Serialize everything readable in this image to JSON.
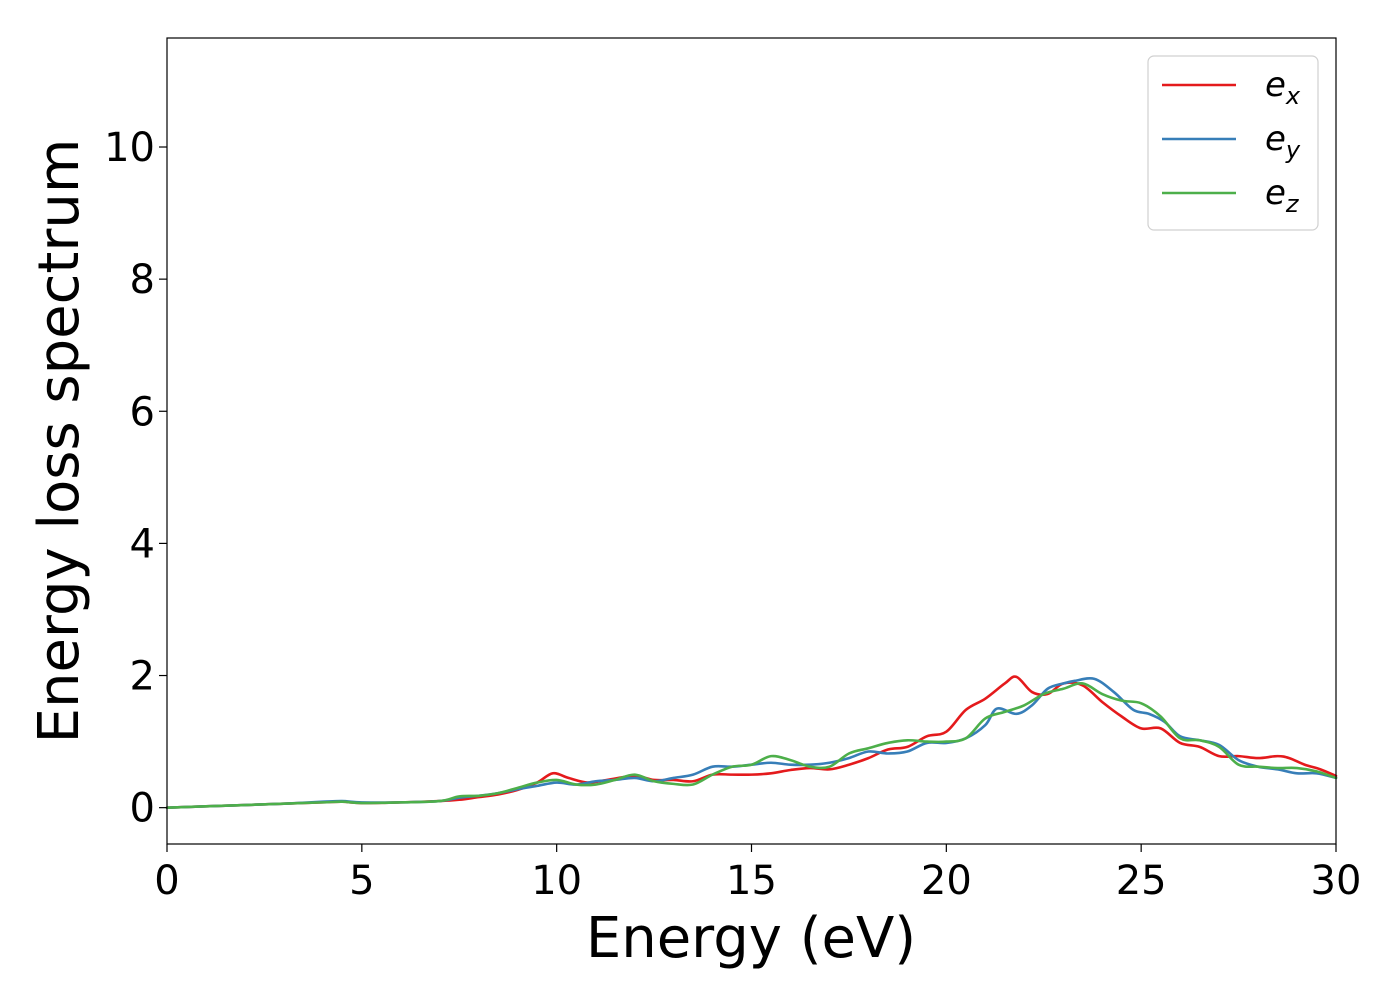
{
  "chart_data": {
    "type": "line",
    "title": "",
    "xlabel": "Energy (eV)",
    "ylabel": "Energy loss spectrum",
    "xlim": [
      0,
      30
    ],
    "ylim": [
      -0.55,
      11.65
    ],
    "xticks": [
      0,
      5,
      10,
      15,
      20,
      25,
      30
    ],
    "yticks": [
      0,
      2,
      4,
      6,
      8,
      10
    ],
    "grid": false,
    "legend_position": "top-right",
    "series": [
      {
        "name": "e_x",
        "label_base": "e",
        "label_sub": "x",
        "color": "#e41a1c",
        "x": [
          0,
          1,
          2,
          3,
          4,
          4.5,
          5,
          6,
          7,
          7.5,
          8,
          8.5,
          9,
          9.5,
          9.9,
          10.3,
          10.8,
          11.3,
          12,
          12.5,
          13,
          13.5,
          14,
          14.5,
          15,
          15.5,
          16,
          16.5,
          17,
          17.5,
          18,
          18.5,
          19,
          19.5,
          20,
          20.5,
          21,
          21.5,
          21.8,
          22.2,
          22.6,
          23,
          23.5,
          24,
          24.5,
          25,
          25.5,
          26,
          26.5,
          27,
          27.5,
          28,
          28.5,
          28.8,
          29.2,
          29.6,
          30
        ],
        "y": [
          0,
          0.02,
          0.04,
          0.06,
          0.08,
          0.09,
          0.07,
          0.08,
          0.1,
          0.12,
          0.16,
          0.2,
          0.27,
          0.38,
          0.52,
          0.45,
          0.38,
          0.42,
          0.48,
          0.42,
          0.42,
          0.4,
          0.5,
          0.5,
          0.5,
          0.52,
          0.57,
          0.6,
          0.58,
          0.65,
          0.75,
          0.88,
          0.92,
          1.08,
          1.15,
          1.48,
          1.65,
          1.88,
          1.98,
          1.75,
          1.72,
          1.88,
          1.85,
          1.6,
          1.38,
          1.2,
          1.2,
          0.98,
          0.92,
          0.78,
          0.78,
          0.75,
          0.78,
          0.75,
          0.65,
          0.58,
          0.48
        ]
      },
      {
        "name": "e_y",
        "label_base": "e",
        "label_sub": "y",
        "color": "#377eb8",
        "x": [
          0,
          1,
          2,
          3,
          4,
          4.5,
          5,
          6,
          7,
          7.5,
          8,
          8.5,
          9,
          9.5,
          10,
          10.5,
          11,
          11.5,
          12,
          12.5,
          13,
          13.5,
          14,
          14.5,
          15,
          15.5,
          16,
          16.5,
          17,
          17.5,
          18,
          18.5,
          19,
          19.5,
          20,
          20.5,
          21,
          21.3,
          21.8,
          22.2,
          22.6,
          23,
          23.3,
          23.8,
          24.3,
          24.8,
          25.2,
          25.6,
          26,
          26.5,
          27,
          27.5,
          28,
          28.5,
          29,
          29.5,
          30
        ],
        "y": [
          0,
          0.02,
          0.04,
          0.06,
          0.09,
          0.1,
          0.08,
          0.08,
          0.1,
          0.15,
          0.18,
          0.22,
          0.28,
          0.33,
          0.38,
          0.35,
          0.4,
          0.42,
          0.45,
          0.4,
          0.45,
          0.5,
          0.62,
          0.62,
          0.65,
          0.68,
          0.65,
          0.65,
          0.68,
          0.75,
          0.85,
          0.82,
          0.85,
          0.98,
          0.98,
          1.05,
          1.25,
          1.5,
          1.42,
          1.55,
          1.8,
          1.88,
          1.92,
          1.95,
          1.75,
          1.48,
          1.42,
          1.3,
          1.08,
          1.02,
          0.95,
          0.72,
          0.62,
          0.58,
          0.52,
          0.52,
          0.45
        ]
      },
      {
        "name": "e_z",
        "label_base": "e",
        "label_sub": "z",
        "color": "#4daf4a",
        "x": [
          0,
          1,
          2,
          3,
          4,
          4.5,
          5,
          6,
          7,
          7.5,
          8,
          8.5,
          9,
          9.5,
          10,
          10.5,
          11,
          11.5,
          12,
          12.5,
          13,
          13.5,
          14,
          14.5,
          15,
          15.5,
          16,
          16.5,
          17,
          17.5,
          18,
          18.5,
          19,
          19.5,
          20,
          20.5,
          21,
          21.5,
          22,
          22.5,
          23,
          23.5,
          24,
          24.5,
          25,
          25.5,
          26,
          26.5,
          27,
          27.5,
          28,
          28.5,
          29,
          29.5,
          30
        ],
        "y": [
          0,
          0.02,
          0.04,
          0.06,
          0.08,
          0.09,
          0.07,
          0.08,
          0.1,
          0.17,
          0.18,
          0.22,
          0.3,
          0.38,
          0.42,
          0.35,
          0.35,
          0.42,
          0.5,
          0.4,
          0.36,
          0.35,
          0.5,
          0.62,
          0.65,
          0.78,
          0.72,
          0.62,
          0.62,
          0.82,
          0.9,
          0.98,
          1.02,
          1.0,
          1.0,
          1.05,
          1.35,
          1.45,
          1.55,
          1.72,
          1.8,
          1.88,
          1.72,
          1.62,
          1.58,
          1.38,
          1.05,
          1.02,
          0.92,
          0.65,
          0.62,
          0.6,
          0.6,
          0.55,
          0.45
        ]
      }
    ]
  }
}
